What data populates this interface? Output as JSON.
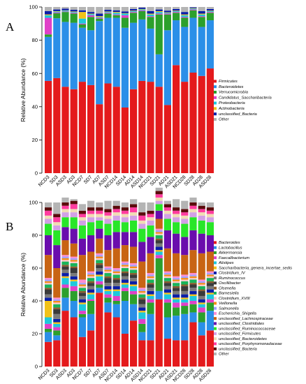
{
  "chart_data": [
    {
      "type": "bar",
      "stacked": true,
      "panel_label": "A",
      "ylabel": "Relative Abundance (%)",
      "ylim": [
        0,
        100
      ],
      "yticks": [
        0,
        20,
        40,
        60,
        80,
        100
      ],
      "categories": [
        "NCD3",
        "SD3",
        "ASD3",
        "AD3",
        "NCD7",
        "SD7",
        "AD7",
        "ASD7",
        "NCD14",
        "SD14",
        "AD14",
        "ASD14",
        "NCD21",
        "SD21",
        "AD21",
        "ASD21",
        "NCD28",
        "SD28",
        "AD28",
        "ASD28"
      ],
      "legend_position": "right",
      "series": [
        {
          "name": "Firmicutes",
          "color": "#e41a1c",
          "values": [
            55.5,
            57.2,
            52.0,
            50.5,
            55.0,
            53.0,
            41.5,
            54.0,
            52.0,
            39.5,
            50.5,
            55.5,
            55.0,
            52.0,
            41.0,
            65.0,
            55.0,
            60.5,
            58.5,
            63.0
          ]
        },
        {
          "name": "Bacteroidetes",
          "color": "#2b8fe8",
          "values": [
            26.5,
            36.0,
            39.0,
            40.0,
            32.5,
            33.0,
            50.0,
            39.5,
            41.5,
            48.0,
            40.0,
            37.0,
            32.0,
            19.5,
            45.0,
            27.0,
            33.0,
            33.0,
            29.5,
            29.0
          ]
        },
        {
          "name": "Verrucomicrobia",
          "color": "#2ca02c",
          "values": [
            1.5,
            3.0,
            6.0,
            5.5,
            2.0,
            8.0,
            1.5,
            2.5,
            1.5,
            6.0,
            6.0,
            5.0,
            7.0,
            24.0,
            9.5,
            4.5,
            5.5,
            4.5,
            6.0,
            4.5
          ]
        },
        {
          "name": "Candidatus_Saccharibacteria",
          "color": "#e040c8",
          "values": [
            10.0,
            0.5,
            0.3,
            0.5,
            0.5,
            1.0,
            0.5,
            0.5,
            0.5,
            1.5,
            0.5,
            0.5,
            0.5,
            0.5,
            0.5,
            0.5,
            0.5,
            0.5,
            0.5,
            0.5
          ]
        },
        {
          "name": "Proteobacteria",
          "color": "#1ec8dc",
          "values": [
            1.5,
            0.5,
            0.5,
            0.5,
            3.0,
            0.7,
            0.5,
            0.5,
            1.0,
            1.0,
            0.5,
            0.5,
            1.0,
            1.0,
            0.5,
            0.5,
            1.0,
            0.5,
            1.0,
            0.5
          ]
        },
        {
          "name": "Actinobacteria",
          "color": "#f2c218",
          "values": [
            0.5,
            0.3,
            0.2,
            0.3,
            4.0,
            0.3,
            0.5,
            0.3,
            0.5,
            0.3,
            0.3,
            0.3,
            0.5,
            0.5,
            0.3,
            0.3,
            0.5,
            0.3,
            0.5,
            0.3
          ]
        },
        {
          "name": "unclassified_Bacteria",
          "color": "#0a1ea8",
          "values": [
            2.0,
            1.0,
            1.0,
            1.0,
            1.0,
            1.0,
            1.5,
            1.0,
            1.0,
            1.0,
            1.0,
            0.8,
            1.5,
            1.0,
            1.0,
            1.0,
            1.5,
            0.5,
            1.5,
            1.0
          ]
        },
        {
          "name": "Other",
          "color": "#b4b4b4",
          "values": [
            2.5,
            1.5,
            1.0,
            1.7,
            2.0,
            3.0,
            4.0,
            1.7,
            2.0,
            2.7,
            1.2,
            0.4,
            2.5,
            1.5,
            2.2,
            1.2,
            3.0,
            0.2,
            2.5,
            1.2
          ]
        }
      ]
    },
    {
      "type": "bar",
      "stacked": true,
      "panel_label": "B",
      "ylabel": "Relative Abundance (%)",
      "ylim": [
        0,
        100
      ],
      "yticks": [
        0,
        20,
        40,
        60,
        80,
        100
      ],
      "categories": [
        "NCD3",
        "SD3",
        "ASD3",
        "AD3",
        "NCD7",
        "SD7",
        "AD7",
        "ASD7",
        "NCD14",
        "SD14",
        "AD14",
        "ASD14",
        "NCD21",
        "SD21",
        "AD21",
        "ASD21",
        "NCD28",
        "SD28",
        "AD28",
        "ASD28"
      ],
      "legend_position": "right",
      "series": [
        {
          "name": "Bacteroides",
          "color": "#e41a1c",
          "values": [
            15,
            16,
            34,
            30,
            18,
            22,
            45,
            33,
            30,
            20,
            28,
            16,
            16,
            41,
            17,
            16,
            16,
            27,
            19,
            22
          ]
        },
        {
          "name": "Lactobacillus",
          "color": "#2b8fe8",
          "values": [
            6,
            3,
            8,
            10,
            12,
            10,
            3,
            6,
            8,
            20,
            10,
            5,
            16,
            5,
            13,
            15,
            16,
            6,
            8,
            12
          ]
        },
        {
          "name": "Akkermansia",
          "color": "#2ca02c",
          "values": [
            2,
            3,
            6,
            6,
            2,
            8,
            2,
            3,
            2,
            6,
            6,
            5,
            7,
            20,
            9,
            5,
            5,
            5,
            6,
            5
          ]
        },
        {
          "name": "Faecalibacterium",
          "color": "#e040c8",
          "values": [
            3,
            2,
            2,
            3,
            2,
            1,
            2,
            2,
            3,
            2,
            2,
            3,
            2,
            2,
            2,
            3,
            2,
            2,
            3,
            2
          ]
        },
        {
          "name": "Alistipes",
          "color": "#1ec8dc",
          "values": [
            4,
            2,
            4,
            3,
            4,
            3,
            3,
            2,
            3,
            2,
            3,
            4,
            2,
            2,
            3,
            2,
            2,
            3,
            2,
            3
          ]
        },
        {
          "name": "Saccharibacteria_genera_incertae_sedis",
          "color": "#f2c218",
          "values": [
            10,
            1,
            1,
            1,
            1,
            1,
            1,
            1,
            1,
            1,
            1,
            1,
            1,
            1,
            1,
            1,
            1,
            1,
            1,
            1
          ]
        },
        {
          "name": "Clostridium_IV",
          "color": "#0a1ea8",
          "values": [
            2,
            2,
            2,
            2,
            2,
            2,
            2,
            2,
            2,
            2,
            2,
            2,
            2,
            2,
            2,
            2,
            2,
            2,
            2,
            2
          ]
        },
        {
          "name": "Ruminococcus",
          "color": "#7a7a7a",
          "values": [
            2,
            3,
            2,
            2,
            2,
            2,
            2,
            2,
            2,
            2,
            2,
            2,
            2,
            2,
            2,
            2,
            2,
            2,
            2,
            2
          ]
        },
        {
          "name": "Oscillibacter",
          "color": "#3a3a3a",
          "values": [
            3,
            3,
            2,
            3,
            2,
            2,
            2,
            3,
            2,
            2,
            2,
            3,
            2,
            2,
            2,
            2,
            3,
            2,
            3,
            2
          ]
        },
        {
          "name": "Olsenella",
          "color": "#8b5a2b",
          "values": [
            1,
            1,
            1,
            1,
            1,
            1,
            1,
            1,
            1,
            1,
            1,
            1,
            1,
            1,
            1,
            1,
            1,
            1,
            1,
            1
          ]
        },
        {
          "name": "Barnesiella",
          "color": "#19b45a",
          "values": [
            2,
            2,
            2,
            2,
            2,
            2,
            2,
            2,
            2,
            2,
            2,
            2,
            2,
            2,
            2,
            2,
            2,
            2,
            2,
            2
          ]
        },
        {
          "name": "Clostridium_XVIII",
          "color": "#ffc8c8",
          "values": [
            1,
            1,
            1,
            1,
            1,
            1,
            1,
            1,
            1,
            1,
            1,
            1,
            1,
            1,
            1,
            1,
            1,
            1,
            1,
            1
          ]
        },
        {
          "name": "Veillonella",
          "color": "#f58c14",
          "values": [
            1,
            1,
            1,
            1,
            1,
            1,
            1,
            1,
            1,
            1,
            1,
            1,
            1,
            1,
            1,
            1,
            1,
            1,
            1,
            1
          ]
        },
        {
          "name": "Salmonella",
          "color": "#a0a0ff",
          "values": [
            1,
            1,
            1,
            1,
            1,
            1,
            1,
            1,
            1,
            1,
            1,
            1,
            1,
            1,
            1,
            1,
            1,
            1,
            1,
            1
          ]
        },
        {
          "name": "Escherichia_Shigella",
          "color": "#ff8cd2",
          "values": [
            1,
            1,
            1,
            1,
            2,
            1,
            1,
            1,
            1,
            1,
            1,
            1,
            1,
            1,
            1,
            1,
            1,
            1,
            1,
            1
          ]
        },
        {
          "name": "unclassified_Lachnospiraceae",
          "color": "#c86414",
          "values": [
            14,
            18,
            9,
            8,
            15,
            12,
            9,
            10,
            12,
            10,
            10,
            16,
            12,
            6,
            14,
            14,
            12,
            14,
            16,
            12
          ]
        },
        {
          "name": "unclassified_Clostridiales",
          "color": "#6a0dad",
          "values": [
            12,
            14,
            8,
            9,
            10,
            10,
            6,
            9,
            10,
            8,
            9,
            12,
            10,
            5,
            11,
            12,
            11,
            12,
            12,
            10
          ]
        },
        {
          "name": "unclassified_Ruminococcaceae",
          "color": "#28e628",
          "values": [
            7,
            9,
            6,
            7,
            8,
            8,
            5,
            7,
            7,
            6,
            7,
            8,
            7,
            4,
            7,
            7,
            8,
            8,
            8,
            8
          ]
        },
        {
          "name": "unclassified_Firmicutes",
          "color": "#d2a0e6",
          "values": [
            3,
            3,
            3,
            3,
            3,
            3,
            2,
            3,
            3,
            3,
            3,
            3,
            3,
            2,
            3,
            3,
            3,
            3,
            3,
            3
          ]
        },
        {
          "name": "unclassified_Bacteroidetes",
          "color": "#f0dcb4",
          "values": [
            2,
            2,
            2,
            2,
            2,
            2,
            2,
            2,
            2,
            2,
            2,
            2,
            2,
            2,
            2,
            2,
            2,
            2,
            2,
            2
          ]
        },
        {
          "name": "unclassified_Porphyromonadaceae",
          "color": "#ff3ca0",
          "values": [
            3,
            3,
            2,
            3,
            2,
            2,
            2,
            2,
            2,
            2,
            3,
            3,
            2,
            2,
            2,
            2,
            2,
            2,
            2,
            2
          ]
        },
        {
          "name": "unclassified_Bacteria",
          "color": "#5a0a0a",
          "values": [
            2,
            2,
            2,
            2,
            2,
            2,
            2,
            2,
            2,
            2,
            2,
            2,
            2,
            2,
            2,
            2,
            2,
            2,
            2,
            2
          ]
        },
        {
          "name": "Other",
          "color": "#b4b4b4",
          "values": [
            3,
            7,
            3,
            1,
            4,
            4,
            3,
            5,
            3,
            3,
            3,
            6,
            5,
            2,
            2,
            5,
            5,
            3,
            2,
            3
          ]
        }
      ]
    }
  ]
}
